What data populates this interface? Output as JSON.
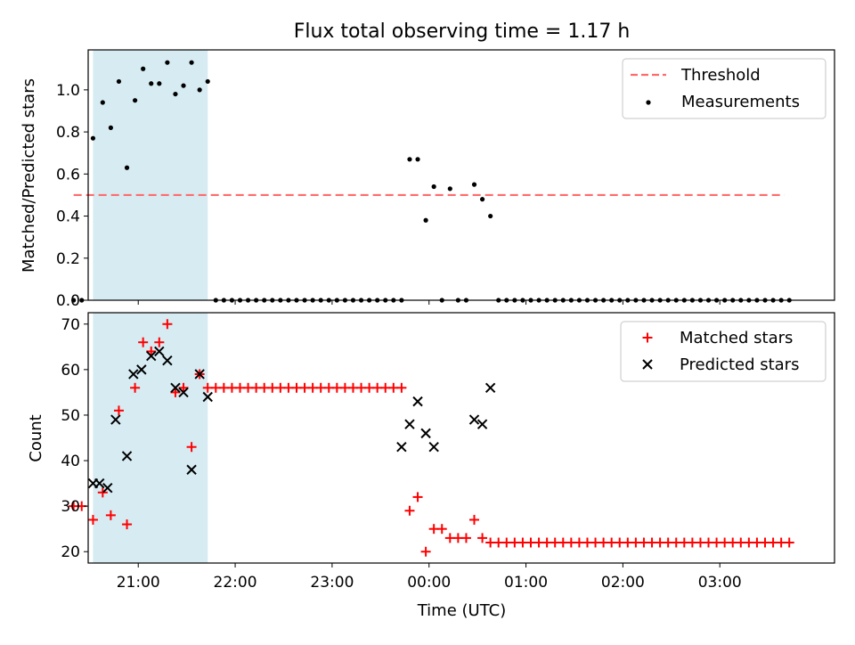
{
  "title": "Flux total observing time = 1.17 h",
  "chart_data": [
    {
      "type": "scatter",
      "title": "Flux total observing time = 1.17 h",
      "xlabel": "",
      "ylabel": "Matched/Predicted stars",
      "ylim": [
        0,
        1.19
      ],
      "xlim": [
        "20:29",
        "04:11"
      ],
      "shaded_region": [
        "20:32",
        "21:43"
      ],
      "shaded_color": "#add8e6",
      "yticks": [
        "0.0",
        "0.2",
        "0.4",
        "0.6",
        "0.8",
        "1.0"
      ],
      "legend": {
        "position": "top-right",
        "entries": [
          "Threshold",
          "Measurements"
        ]
      },
      "threshold": {
        "name": "Threshold",
        "y": 0.5,
        "x_range": [
          "20:20",
          "03:40"
        ],
        "color": "#ff6b6b"
      },
      "series": [
        {
          "name": "Measurements",
          "color": "#000000",
          "x": [
            "20:20",
            "20:25",
            "20:32",
            "20:38",
            "20:43",
            "20:48",
            "20:53",
            "20:58",
            "21:03",
            "21:08",
            "21:13",
            "21:18",
            "21:23",
            "21:28",
            "21:33",
            "21:38",
            "21:43",
            "21:48",
            "21:53",
            "21:58",
            "22:03",
            "22:08",
            "22:13",
            "22:18",
            "22:23",
            "22:28",
            "22:33",
            "22:38",
            "22:43",
            "22:48",
            "22:53",
            "22:58",
            "23:03",
            "23:08",
            "23:13",
            "23:18",
            "23:23",
            "23:28",
            "23:33",
            "23:38",
            "23:43",
            "23:48",
            "23:53",
            "23:58",
            "00:03",
            "00:08",
            "00:13",
            "00:18",
            "00:23",
            "00:28",
            "00:33",
            "00:38",
            "00:43",
            "00:48",
            "00:53",
            "00:58",
            "01:03",
            "01:08",
            "01:13",
            "01:18",
            "01:23",
            "01:28",
            "01:33",
            "01:38",
            "01:43",
            "01:48",
            "01:53",
            "01:58",
            "02:03",
            "02:08",
            "02:13",
            "02:18",
            "02:23",
            "02:28",
            "02:33",
            "02:38",
            "02:43",
            "02:48",
            "02:53",
            "02:58",
            "03:03",
            "03:08",
            "03:13",
            "03:18",
            "03:23",
            "03:28",
            "03:33",
            "03:38",
            "03:43"
          ],
          "y": [
            0,
            0,
            0.77,
            0.94,
            0.82,
            1.04,
            0.63,
            0.95,
            1.1,
            1.03,
            1.03,
            1.13,
            0.98,
            1.02,
            1.13,
            1.0,
            1.04,
            0,
            0,
            0,
            0,
            0,
            0,
            0,
            0,
            0,
            0,
            0,
            0,
            0,
            0,
            0,
            0,
            0,
            0,
            0,
            0,
            0,
            0,
            0,
            0,
            0.67,
            0.67,
            0.38,
            0.54,
            0,
            0.53,
            0,
            0,
            0.55,
            0.48,
            0.4,
            0,
            0,
            0,
            0,
            0,
            0,
            0,
            0,
            0,
            0,
            0,
            0,
            0,
            0,
            0,
            0,
            0,
            0,
            0,
            0,
            0,
            0,
            0,
            0,
            0,
            0,
            0,
            0,
            0,
            0,
            0,
            0,
            0,
            0,
            0,
            0,
            0
          ]
        }
      ]
    },
    {
      "type": "scatter",
      "title": "",
      "xlabel": "Time (UTC)",
      "ylabel": "Count",
      "ylim": [
        17.5,
        72.5
      ],
      "xlim": [
        "20:29",
        "04:11"
      ],
      "shaded_region": [
        "20:32",
        "21:43"
      ],
      "shaded_color": "#add8e6",
      "xticks": [
        "21:00",
        "22:00",
        "23:00",
        "00:00",
        "01:00",
        "02:00",
        "03:00"
      ],
      "yticks": [
        "20",
        "30",
        "40",
        "50",
        "60",
        "70"
      ],
      "legend": {
        "position": "top-right",
        "entries": [
          "Matched stars",
          "Predicted stars"
        ]
      },
      "series": [
        {
          "name": "Matched stars",
          "marker": "+",
          "color": "#ff0000",
          "x": [
            "20:20",
            "20:25",
            "20:32",
            "20:38",
            "20:43",
            "20:48",
            "20:53",
            "20:58",
            "21:03",
            "21:08",
            "21:13",
            "21:18",
            "21:23",
            "21:28",
            "21:33",
            "21:38",
            "21:43",
            "21:48",
            "21:53",
            "21:58",
            "22:03",
            "22:08",
            "22:13",
            "22:18",
            "22:23",
            "22:28",
            "22:33",
            "22:38",
            "22:43",
            "22:48",
            "22:53",
            "22:58",
            "23:03",
            "23:08",
            "23:13",
            "23:18",
            "23:23",
            "23:28",
            "23:33",
            "23:38",
            "23:43",
            "23:48",
            "23:53",
            "23:58",
            "00:03",
            "00:08",
            "00:13",
            "00:18",
            "00:23",
            "00:28",
            "00:33",
            "00:38",
            "00:43",
            "00:48",
            "00:53",
            "00:58",
            "01:03",
            "01:08",
            "01:13",
            "01:18",
            "01:23",
            "01:28",
            "01:33",
            "01:38",
            "01:43",
            "01:48",
            "01:53",
            "01:58",
            "02:03",
            "02:08",
            "02:13",
            "02:18",
            "02:23",
            "02:28",
            "02:33",
            "02:38",
            "02:43",
            "02:48",
            "02:53",
            "02:58",
            "03:03",
            "03:08",
            "03:13",
            "03:18",
            "03:23",
            "03:28",
            "03:33",
            "03:38",
            "03:43"
          ],
          "y": [
            30,
            30,
            27,
            33,
            28,
            51,
            26,
            56,
            66,
            64,
            66,
            70,
            55,
            56,
            43,
            59,
            56,
            56,
            56,
            56,
            56,
            56,
            56,
            56,
            56,
            56,
            56,
            56,
            56,
            56,
            56,
            56,
            56,
            56,
            56,
            56,
            56,
            56,
            56,
            56,
            56,
            29,
            32,
            20,
            25,
            25,
            23,
            23,
            23,
            27,
            23,
            22,
            22,
            22,
            22,
            22,
            22,
            22,
            22,
            22,
            22,
            22,
            22,
            22,
            22,
            22,
            22,
            22,
            22,
            22,
            22,
            22,
            22,
            22,
            22,
            22,
            22,
            22,
            22,
            22,
            22,
            22,
            22,
            22,
            22,
            22,
            22,
            22,
            22
          ]
        },
        {
          "name": "Predicted stars",
          "marker": "x",
          "color": "#000000",
          "x": [
            "20:32",
            "20:36",
            "20:41",
            "20:46",
            "20:53",
            "20:57",
            "21:02",
            "21:08",
            "21:13",
            "21:18",
            "21:23",
            "21:28",
            "21:33",
            "21:38",
            "21:43",
            "23:43",
            "23:48",
            "23:53",
            "23:58",
            "00:03",
            "00:28",
            "00:33",
            "00:38"
          ],
          "y": [
            35,
            35,
            34,
            49,
            41,
            59,
            60,
            63,
            64,
            62,
            56,
            55,
            38,
            59,
            54,
            43,
            48,
            53,
            46,
            43,
            49,
            48,
            56
          ]
        }
      ]
    }
  ]
}
